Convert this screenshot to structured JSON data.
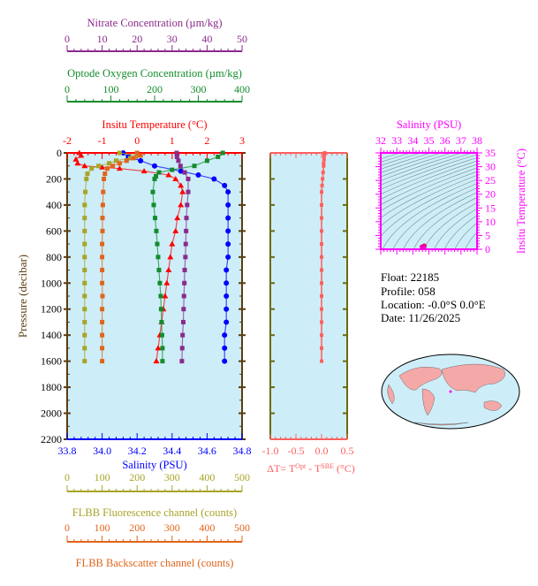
{
  "info": {
    "float": "Float:  22185",
    "profile": "Profile:  058",
    "location": "Location:  -0.0°S   0.0°E",
    "date": "Date:  11/26/2025"
  },
  "colors": {
    "temperature": "#ff0000",
    "salinity": "#0000ff",
    "oxygen": "#138c2c",
    "nitrate": "#8b2a8b",
    "fluorescence": "#a8a428",
    "backscatter": "#e0641c",
    "deltaT": "#ff6060",
    "ts": "#ff00ff",
    "plot_bg": "#cdeef8",
    "frame": "#5a3d10"
  },
  "chart_data": [
    {
      "type": "line",
      "ylabel": "Pressure (decibar)",
      "ylim": [
        0,
        2200
      ],
      "yticks": [
        "0",
        "200",
        "400",
        "600",
        "800",
        "1000",
        "1200",
        "1400",
        "1600",
        "1800",
        "2000",
        "2200"
      ],
      "grid": false,
      "axes": [
        {
          "key": "nitrate",
          "label": "Nitrate Concentration (µm/kg)",
          "lim": [
            0,
            50
          ],
          "ticks": [
            "0",
            "10",
            "20",
            "30",
            "40",
            "50"
          ],
          "position": "top"
        },
        {
          "key": "oxygen",
          "label": "Optode Oxygen Concentration (µm/kg)",
          "lim": [
            0,
            400
          ],
          "ticks": [
            "0",
            "100",
            "200",
            "300",
            "400"
          ],
          "position": "top"
        },
        {
          "key": "temperature",
          "label": "Insitu Temperature (°C)",
          "lim": [
            -2,
            3
          ],
          "ticks": [
            "-2",
            "-1",
            "0",
            "1",
            "2",
            "3"
          ],
          "position": "top"
        },
        {
          "key": "salinity",
          "label": "Salinity (PSU)",
          "lim": [
            33.8,
            34.8
          ],
          "ticks": [
            "33.8",
            "34.0",
            "34.2",
            "34.4",
            "34.6",
            "34.8"
          ],
          "position": "bottom"
        },
        {
          "key": "fluorescence",
          "label": "FLBB Fluorescence channel (counts)",
          "lim": [
            0,
            500
          ],
          "ticks": [
            "0",
            "100",
            "200",
            "300",
            "400",
            "500"
          ],
          "position": "bottom"
        },
        {
          "key": "backscatter",
          "label": "FLBB Backscatter channel (counts)",
          "lim": [
            0,
            500
          ],
          "ticks": [
            "0",
            "100",
            "200",
            "300",
            "400",
            "500"
          ],
          "position": "bottom"
        }
      ],
      "series": [
        {
          "key": "temperature",
          "marker": "triangle",
          "pressure": [
            0,
            20,
            50,
            80,
            100,
            110,
            120,
            140,
            170,
            200,
            250,
            300,
            400,
            500,
            600,
            700,
            800,
            900,
            1000,
            1100,
            1200,
            1300,
            1400,
            1500,
            1600
          ],
          "values": [
            -1.65,
            -1.6,
            -1.75,
            -1.7,
            -1.5,
            -1.0,
            -0.5,
            0.2,
            0.9,
            1.1,
            1.25,
            1.3,
            1.25,
            1.15,
            1.1,
            1.0,
            0.95,
            0.9,
            0.85,
            0.8,
            0.75,
            0.7,
            0.65,
            0.6,
            0.55
          ]
        },
        {
          "key": "salinity",
          "marker": "circle",
          "pressure": [
            0,
            30,
            60,
            100,
            140,
            170,
            200,
            250,
            300,
            400,
            500,
            600,
            700,
            800,
            900,
            1000,
            1100,
            1200,
            1300,
            1400,
            1500,
            1600
          ],
          "values": [
            34.12,
            34.15,
            34.22,
            34.3,
            34.45,
            34.55,
            34.64,
            34.7,
            34.72,
            34.72,
            34.72,
            34.72,
            34.72,
            34.72,
            34.71,
            34.71,
            34.71,
            34.71,
            34.71,
            34.7,
            34.7,
            34.7
          ]
        },
        {
          "key": "oxygen",
          "marker": "square",
          "pressure": [
            0,
            30,
            60,
            100,
            130,
            150,
            180,
            200,
            300,
            400,
            500,
            600,
            700,
            800,
            900,
            1000,
            1100,
            1200,
            1300,
            1400,
            1500,
            1600
          ],
          "values": [
            356,
            345,
            320,
            291,
            240,
            210,
            203,
            200,
            196,
            198,
            201,
            204,
            206,
            208,
            210,
            212,
            214,
            215,
            216,
            217,
            218,
            218
          ]
        },
        {
          "key": "nitrate",
          "marker": "square",
          "pressure": [
            0,
            30,
            60,
            100,
            150,
            200,
            300,
            400,
            500,
            600,
            700,
            800,
            900,
            1000,
            1100,
            1200,
            1300,
            1400,
            1500,
            1600
          ],
          "values": [
            31.3,
            31.4,
            31.8,
            32.4,
            33.6,
            34.6,
            34.6,
            34.3,
            34.1,
            34.0,
            33.9,
            33.8,
            33.6,
            33.5,
            33.4,
            33.3,
            33.2,
            33.0,
            32.9,
            32.8
          ]
        },
        {
          "key": "fluorescence",
          "marker": "square",
          "pressure": [
            0,
            20,
            40,
            60,
            80,
            100,
            120,
            160,
            200,
            300,
            400,
            500,
            600,
            700,
            800,
            900,
            1000,
            1100,
            1200,
            1300,
            1400,
            1500,
            1600
          ],
          "values": [
            150,
            200,
            180,
            140,
            120,
            90,
            70,
            58,
            55,
            52,
            50,
            50,
            50,
            50,
            50,
            50,
            50,
            50,
            50,
            50,
            50,
            50,
            50
          ]
        },
        {
          "key": "backscatter",
          "marker": "square",
          "pressure": [
            0,
            20,
            40,
            60,
            80,
            100,
            120,
            160,
            200,
            300,
            400,
            500,
            600,
            700,
            800,
            900,
            1000,
            1100,
            1200,
            1300,
            1400,
            1500,
            1600
          ],
          "values": [
            200,
            210,
            190,
            170,
            150,
            130,
            115,
            108,
            105,
            103,
            102,
            101,
            101,
            100,
            100,
            100,
            100,
            101,
            100,
            100,
            100,
            100,
            100
          ]
        }
      ]
    },
    {
      "type": "line",
      "xlabel": "ΔT= T^Opt - T^SBE (°C)",
      "xlim": [
        -1.0,
        0.5
      ],
      "xticks": [
        "-1.0",
        "-0.5",
        "0.0",
        "0.5"
      ],
      "ylim": [
        0,
        2200
      ],
      "series": [
        {
          "key": "deltaT",
          "pressure": [
            0,
            20,
            50,
            80,
            100,
            150,
            200,
            250,
            300,
            400,
            500,
            600,
            700,
            800,
            900,
            1000,
            1100,
            1200,
            1300,
            1400,
            1500,
            1600
          ],
          "values": [
            0.06,
            0.05,
            0.05,
            0.04,
            0.04,
            0.03,
            0.02,
            0.01,
            0.0,
            0.0,
            0.0,
            0.0,
            0.0,
            0.0,
            0.0,
            0.0,
            0.0,
            0.0,
            0.0,
            0.0,
            0.0,
            0.0
          ]
        }
      ]
    },
    {
      "type": "scatter",
      "xlabel": "Salinity (PSU)",
      "ylabel": "Insitu Temperature (°C)",
      "xlim": [
        32,
        38
      ],
      "ylim": [
        0,
        35
      ],
      "xticks": [
        "32",
        "33",
        "34",
        "35",
        "36",
        "37",
        "38"
      ],
      "yticks": [
        "0",
        "5",
        "10",
        "15",
        "20",
        "25",
        "30",
        "35"
      ],
      "density_contours": true,
      "points": {
        "salinity": [
          34.55,
          34.64,
          34.7,
          34.72,
          34.72,
          34.71,
          34.7
        ],
        "temperature": [
          0.9,
          1.1,
          1.25,
          1.3,
          1.25,
          0.85,
          0.55
        ]
      }
    }
  ]
}
